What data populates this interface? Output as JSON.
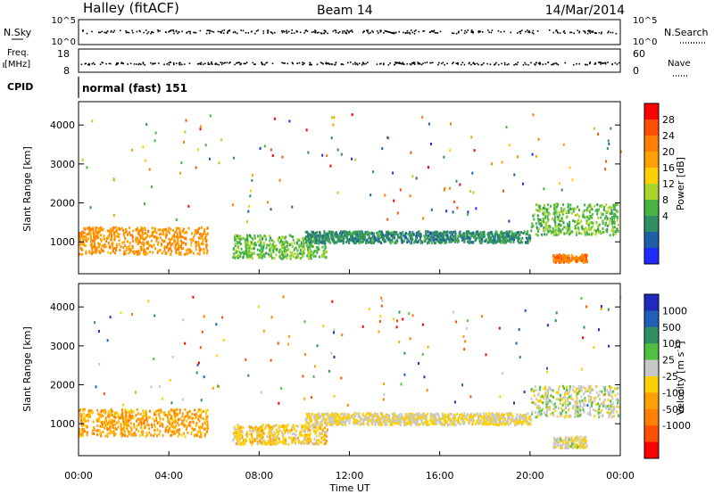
{
  "header": {
    "station": "Halley (fitACF)",
    "beam": "Beam 14",
    "date": "14/Mar/2014"
  },
  "params": {
    "nsky_label": "N.Sky",
    "nsky_ticks": [
      "10^5",
      "10^0"
    ],
    "nsearch_label": "N.Search",
    "nsearch_ticks": [
      "10^5",
      "10^0"
    ],
    "freq_label_line1": "Freq.",
    "freq_label_line2": "[MHz]",
    "freq_ticks": [
      "18",
      "8"
    ],
    "nave_label": "Nave",
    "nave_ticks": [
      "60",
      "0"
    ],
    "cpid_label": "CPID",
    "cpid_text": "normal (fast) 151"
  },
  "panels": {
    "ylabel": "Slant Range [km]",
    "yticks": [
      "4000",
      "3000",
      "2000",
      "1000"
    ],
    "xticks": [
      "00:00",
      "04:00",
      "08:00",
      "12:00",
      "16:00",
      "20:00",
      "00:00"
    ],
    "xlabel": "Time UT"
  },
  "colorbars": {
    "power": {
      "label": "Power [dB]",
      "ticks": [
        "28",
        "24",
        "20",
        "16",
        "12",
        "8",
        "4"
      ],
      "colors": [
        "#ff0000",
        "#ff4f00",
        "#ff7f00",
        "#ffa000",
        "#ffd000",
        "#a8d62a",
        "#48b446",
        "#2f8f63",
        "#205fa8",
        "#1f2bff"
      ]
    },
    "velocity": {
      "label": "Velocity [m s",
      "label_sup": "-1",
      "label_end": "]",
      "ticks": [
        "1000",
        "500",
        "100",
        "25",
        "-25",
        "-100",
        "-500",
        "-1000"
      ],
      "colors": [
        "#1f2bbf",
        "#2060b8",
        "#2f8f63",
        "#50c040",
        "#c8c8c8",
        "#ffd000",
        "#ffa000",
        "#ff7f00",
        "#ff4f00",
        "#ff0000"
      ]
    }
  },
  "chart_data": {
    "type": "heatmap",
    "title": "Halley (fitACF) Beam 14 14/Mar/2014",
    "xlabel": "Time UT",
    "ylabel": "Slant Range [km]",
    "x_range": [
      "00:00",
      "24:00"
    ],
    "ylim": [
      180,
      4600
    ],
    "series": [
      {
        "name": "Power [dB]",
        "clim": [
          0,
          32
        ],
        "regions": [
          {
            "t_start_h": 0.0,
            "t_end_h": 5.7,
            "range_km": [
              700,
              1400
            ],
            "value": 22
          },
          {
            "t_start_h": 6.8,
            "t_end_h": 11.0,
            "range_km": [
              600,
              1200
            ],
            "value": 12
          },
          {
            "t_start_h": 10.0,
            "t_end_h": 20.0,
            "range_km": [
              1000,
              1300
            ],
            "value": 8
          },
          {
            "t_start_h": 20.0,
            "t_end_h": 23.9,
            "range_km": [
              1200,
              2000
            ],
            "value": 12
          },
          {
            "t_start_h": 21.0,
            "t_end_h": 22.5,
            "range_km": [
              500,
              700
            ],
            "value": 24
          }
        ]
      },
      {
        "name": "Velocity",
        "clim": [
          -1000,
          1000
        ],
        "regions": [
          {
            "t_start_h": 0.0,
            "t_end_h": 5.7,
            "range_km": [
              700,
              1400
            ],
            "value": -300
          },
          {
            "t_start_h": 6.8,
            "t_end_h": 11.0,
            "range_km": [
              500,
              1000
            ],
            "value": -100
          },
          {
            "t_start_h": 10.0,
            "t_end_h": 20.0,
            "range_km": [
              1000,
              1300
            ],
            "value": 0
          },
          {
            "t_start_h": 20.0,
            "t_end_h": 23.9,
            "range_km": [
              1200,
              2000
            ],
            "value": 100
          },
          {
            "t_start_h": 21.0,
            "t_end_h": 22.5,
            "range_km": [
              400,
              700
            ],
            "value": 50
          }
        ]
      }
    ],
    "nave": 60,
    "freq_mhz": 11
  }
}
